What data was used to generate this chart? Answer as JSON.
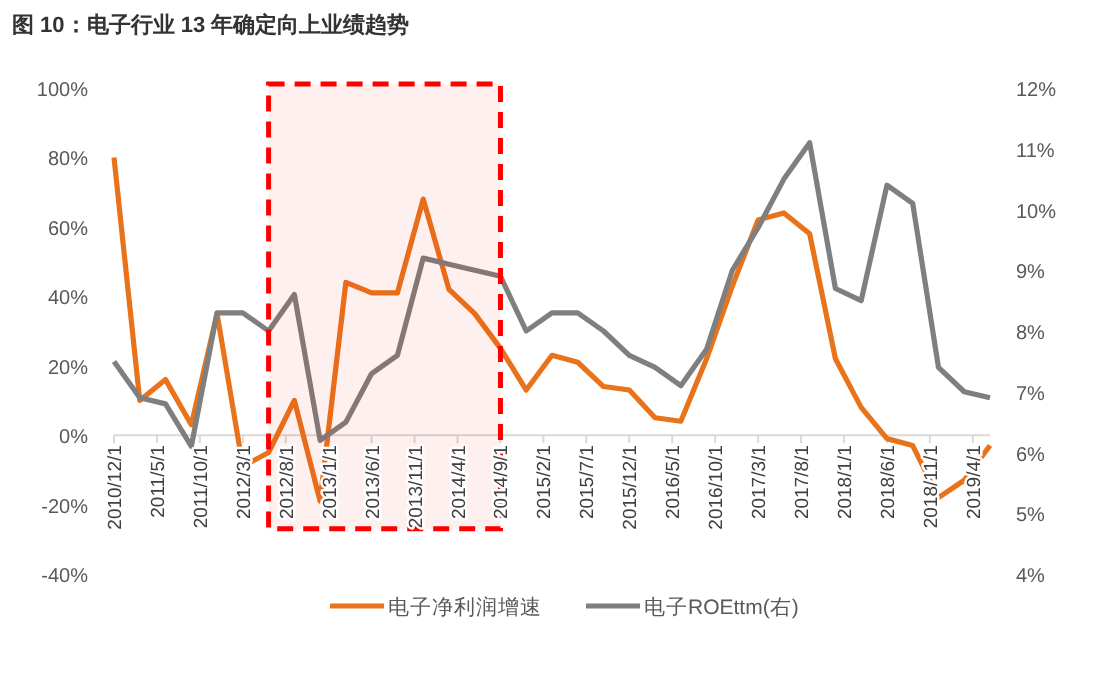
{
  "chart_data": {
    "type": "line",
    "title": "图 10：电子行业 13 年确定向上业绩趋势",
    "x": [
      "2010-12",
      "2011-03",
      "2011-06",
      "2011-09",
      "2011-12",
      "2012-03",
      "2012-06",
      "2012-09",
      "2012-12",
      "2013-03",
      "2013-06",
      "2013-09",
      "2013-12",
      "2014-03",
      "2014-06",
      "2014-09",
      "2014-12",
      "2015-03",
      "2015-06",
      "2015-09",
      "2015-12",
      "2016-03",
      "2016-06",
      "2016-09",
      "2016-12",
      "2017-03",
      "2017-06",
      "2017-09",
      "2017-12",
      "2018-03",
      "2018-06",
      "2018-09",
      "2018-12",
      "2019-03",
      "2019-06"
    ],
    "xlim": [
      "2010-12",
      "2019-06"
    ],
    "xticks": [
      {
        "value": "2010-12",
        "label": "2010/12/1"
      },
      {
        "value": "2011-05",
        "label": "2011/5/1"
      },
      {
        "value": "2011-10",
        "label": "2011/10/1"
      },
      {
        "value": "2012-03",
        "label": "2012/3/1"
      },
      {
        "value": "2012-08",
        "label": "2012/8/1"
      },
      {
        "value": "2013-01",
        "label": "2013/1/1"
      },
      {
        "value": "2013-06",
        "label": "2013/6/1"
      },
      {
        "value": "2013-11",
        "label": "2013/11/1"
      },
      {
        "value": "2014-04",
        "label": "2014/4/1"
      },
      {
        "value": "2014-09",
        "label": "2014/9/1"
      },
      {
        "value": "2015-02",
        "label": "2015/2/1"
      },
      {
        "value": "2015-07",
        "label": "2015/7/1"
      },
      {
        "value": "2015-12",
        "label": "2015/12/1"
      },
      {
        "value": "2016-05",
        "label": "2016/5/1"
      },
      {
        "value": "2016-10",
        "label": "2016/10/1"
      },
      {
        "value": "2017-03",
        "label": "2017/3/1"
      },
      {
        "value": "2017-08",
        "label": "2017/8/1"
      },
      {
        "value": "2018-01",
        "label": "2018/1/1"
      },
      {
        "value": "2018-06",
        "label": "2018/6/1"
      },
      {
        "value": "2018-11",
        "label": "2018/11/1"
      },
      {
        "value": "2019-04",
        "label": "2019/4/1"
      }
    ],
    "ylim": [
      -40,
      100
    ],
    "yticks": [
      {
        "value": -40,
        "label": "-40%"
      },
      {
        "value": -20,
        "label": "-20%"
      },
      {
        "value": 0,
        "label": "0%"
      },
      {
        "value": 20,
        "label": "20%"
      },
      {
        "value": 40,
        "label": "40%"
      },
      {
        "value": 60,
        "label": "60%"
      },
      {
        "value": 80,
        "label": "80%"
      },
      {
        "value": 100,
        "label": "100%"
      }
    ],
    "y2lim": [
      4,
      12
    ],
    "y2ticks": [
      {
        "value": 4,
        "label": "4%"
      },
      {
        "value": 5,
        "label": "5%"
      },
      {
        "value": 6,
        "label": "6%"
      },
      {
        "value": 7,
        "label": "7%"
      },
      {
        "value": 8,
        "label": "8%"
      },
      {
        "value": 9,
        "label": "9%"
      },
      {
        "value": 10,
        "label": "10%"
      },
      {
        "value": 11,
        "label": "11%"
      },
      {
        "value": 12,
        "label": "12%"
      }
    ],
    "series": [
      {
        "name": "电子净利润增速",
        "color": "#e8731a",
        "values": [
          80,
          10,
          16,
          3,
          35,
          -9,
          -5,
          10,
          -19,
          44,
          41,
          41,
          68,
          42,
          35,
          25,
          13,
          23,
          21,
          14,
          13,
          5,
          4,
          22,
          43,
          62,
          64,
          58,
          22,
          8,
          -1,
          -3,
          -18,
          -13,
          -3
        ]
      },
      {
        "name": "电子ROEttm(右)",
        "color": "#7f7f7f",
        "axis": "y2",
        "values": [
          7.5,
          6.9,
          6.8,
          6.1,
          8.3,
          8.3,
          8.0,
          8.6,
          6.2,
          6.5,
          7.3,
          7.6,
          9.2,
          9.1,
          9.0,
          8.9,
          8.0,
          8.3,
          8.3,
          8.0,
          7.6,
          7.4,
          7.1,
          7.7,
          9.0,
          9.7,
          10.5,
          11.1,
          8.7,
          8.5,
          10.4,
          10.1,
          7.4,
          7.0,
          6.9
        ]
      }
    ],
    "bands": [
      {
        "axis": "x",
        "from": "2012-06",
        "to": "2014-09",
        "color": "#ff0000"
      }
    ],
    "line_style": "solid",
    "legend": "bottom",
    "grid": false
  }
}
